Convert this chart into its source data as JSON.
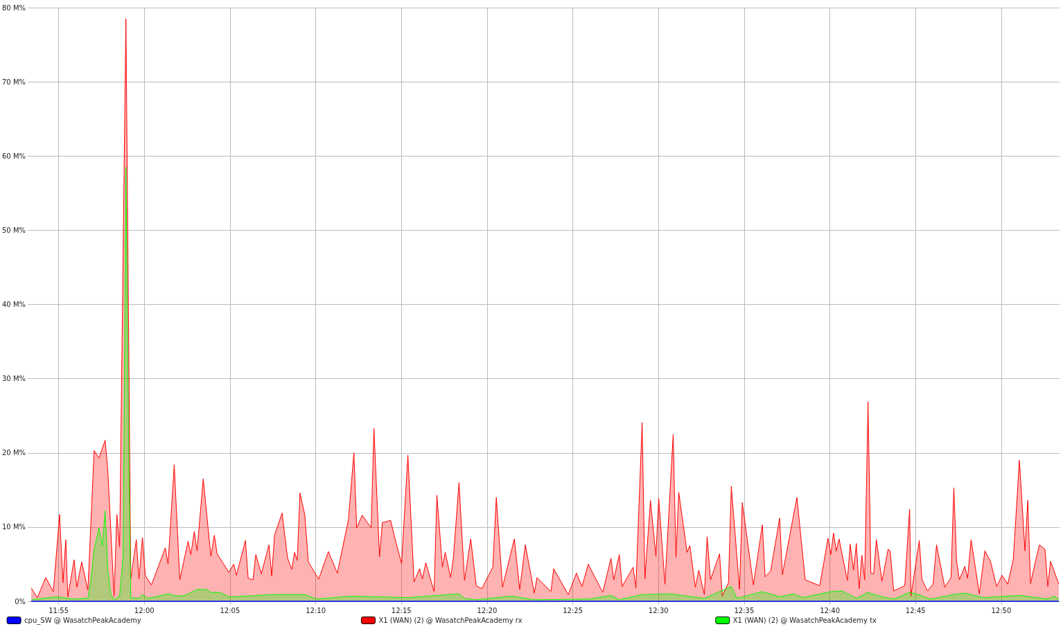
{
  "chart_data": {
    "type": "area",
    "xlim": [
      11.89,
      12.89
    ],
    "ylim": [
      0,
      80
    ],
    "xticks": [
      {
        "value": 11.9167,
        "label": "11:55"
      },
      {
        "value": 12.0,
        "label": "12:00"
      },
      {
        "value": 12.0833,
        "label": "12:05"
      },
      {
        "value": 12.1667,
        "label": "12:10"
      },
      {
        "value": 12.25,
        "label": "12:15"
      },
      {
        "value": 12.3333,
        "label": "12:20"
      },
      {
        "value": 12.4167,
        "label": "12:25"
      },
      {
        "value": 12.5,
        "label": "12:30"
      },
      {
        "value": 12.5833,
        "label": "12:35"
      },
      {
        "value": 12.6667,
        "label": "12:40"
      },
      {
        "value": 12.75,
        "label": "12:45"
      },
      {
        "value": 12.8333,
        "label": "12:50"
      }
    ],
    "yticks": [
      {
        "value": 0,
        "label": "0%"
      },
      {
        "value": 10,
        "label": "10 M%"
      },
      {
        "value": 20,
        "label": "20 M%"
      },
      {
        "value": 30,
        "label": "30 M%"
      },
      {
        "value": 40,
        "label": "40 M%"
      },
      {
        "value": 50,
        "label": "50 M%"
      },
      {
        "value": 60,
        "label": "60 M%"
      },
      {
        "value": 70,
        "label": "70 M%"
      },
      {
        "value": 80,
        "label": "80 M%"
      }
    ],
    "grid": true,
    "legend": "bottom",
    "marker": "none",
    "series": [
      {
        "name": "cpu_SW @ WasatchPeakAcademy",
        "type": "line",
        "color": "#0000ff",
        "x": [
          11.89,
          12.8893
        ],
        "values": [
          0,
          0
        ]
      },
      {
        "name": "X1 (WAN) (2) @ WasatchPeakAcademy rx",
        "color": "#ff0000",
        "x": [
          11.89,
          11.896,
          11.9041,
          11.9115,
          11.9176,
          11.9209,
          11.9236,
          11.9256,
          11.9317,
          11.9344,
          11.9391,
          11.9451,
          11.9512,
          11.9559,
          11.9619,
          11.9646,
          11.9706,
          11.9733,
          11.976,
          11.9821,
          11.9868,
          11.9922,
          11.9948,
          11.9982,
          12.0009,
          12.0069,
          12.0204,
          12.0231,
          12.0291,
          12.0345,
          12.0426,
          12.0452,
          12.0486,
          12.0513,
          12.0573,
          12.0647,
          12.0681,
          12.0708,
          12.0822,
          12.0869,
          12.0896,
          12.0983,
          12.101,
          12.1057,
          12.1084,
          12.1138,
          12.1212,
          12.1239,
          12.1266,
          12.134,
          12.1393,
          12.1434,
          12.1461,
          12.1487,
          12.1514,
          12.1561,
          12.1595,
          12.1696,
          12.179,
          12.1877,
          12.1985,
          12.2038,
          12.2065,
          12.2119,
          12.2206,
          12.2233,
          12.2287,
          12.2314,
          12.2395,
          12.2448,
          12.2502,
          12.2563,
          12.2623,
          12.2677,
          12.2704,
          12.2737,
          12.2818,
          12.2845,
          12.2899,
          12.2926,
          12.2979,
          12.3006,
          12.306,
          12.3114,
          12.3174,
          12.3228,
          12.3282,
          12.3389,
          12.3423,
          12.3483,
          12.3598,
          12.3651,
          12.3705,
          12.3792,
          12.3819,
          12.3954,
          12.3981,
          12.4122,
          12.4202,
          12.4256,
          12.4317,
          12.4458,
          12.4538,
          12.4565,
          12.4619,
          12.4646,
          12.4754,
          12.478,
          12.4841,
          12.4868,
          12.4922,
          12.4975,
          12.5002,
          12.5063,
          12.5143,
          12.517,
          12.5197,
          12.5278,
          12.5305,
          12.5358,
          12.5392,
          12.5446,
          12.5473,
          12.5506,
          12.5594,
          12.562,
          12.5681,
          12.5708,
          12.5788,
          12.5815,
          12.5923,
          12.601,
          12.6037,
          12.6091,
          12.6178,
          12.6205,
          12.6346,
          12.6427,
          12.6568,
          12.6649,
          12.6676,
          12.6702,
          12.6729,
          12.6756,
          12.6837,
          12.6864,
          12.6897,
          12.6924,
          12.6951,
          12.6978,
          12.7005,
          12.7038,
          12.7065,
          12.7092,
          12.7119,
          12.7173,
          12.7233,
          12.7253,
          12.7287,
          12.7395,
          12.7442,
          12.7455,
          12.7536,
          12.7563,
          12.7616,
          12.767,
          12.7704,
          12.7784,
          12.7845,
          12.7872,
          12.7899,
          12.7926,
          12.7979,
          12.8006,
          12.804,
          12.812,
          12.8174,
          12.8228,
          12.8288,
          12.8342,
          12.8396,
          12.845,
          12.851,
          12.8564,
          12.8591,
          12.8618,
          12.8678,
          12.8705,
          12.8759,
          12.8786,
          12.8813,
          12.8893
        ],
        "values": [
          1.8,
          0.5,
          3.2,
          1.3,
          11.7,
          2.5,
          8.3,
          0.6,
          5.6,
          1.9,
          5.3,
          1.5,
          20.3,
          19.3,
          21.7,
          17.4,
          0.7,
          11.7,
          7.3,
          78.5,
          3.0,
          8.3,
          3.0,
          8.6,
          3.5,
          2.2,
          7.2,
          5.0,
          18.4,
          2.9,
          8.1,
          6.3,
          9.4,
          6.8,
          16.5,
          6.1,
          8.9,
          6.4,
          3.9,
          5.0,
          3.5,
          8.2,
          3.1,
          2.9,
          6.3,
          3.7,
          7.6,
          3.4,
          8.9,
          11.9,
          5.8,
          4.3,
          6.6,
          5.5,
          14.6,
          11.6,
          5.3,
          3.0,
          6.7,
          3.8,
          11.0,
          20.0,
          9.9,
          11.6,
          9.9,
          23.3,
          6.0,
          10.6,
          10.9,
          7.9,
          5.1,
          19.7,
          2.6,
          4.4,
          3.0,
          5.2,
          1.3,
          14.3,
          4.6,
          6.6,
          3.2,
          5.9,
          16.0,
          2.8,
          8.4,
          2.1,
          1.7,
          4.6,
          14.0,
          1.9,
          8.4,
          1.6,
          7.6,
          1.1,
          3.2,
          1.3,
          4.4,
          0.9,
          3.8,
          2.0,
          5.0,
          1.2,
          5.8,
          2.9,
          6.3,
          2.0,
          4.6,
          1.8,
          24.1,
          3.0,
          13.6,
          6.1,
          13.9,
          2.3,
          22.5,
          5.9,
          14.7,
          6.6,
          7.5,
          1.9,
          4.2,
          0.9,
          8.7,
          2.9,
          6.4,
          0.7,
          2.5,
          15.5,
          1.6,
          13.3,
          2.2,
          10.3,
          3.3,
          4.1,
          11.2,
          3.6,
          14.0,
          2.9,
          2.1,
          8.5,
          6.3,
          9.2,
          6.8,
          8.4,
          2.8,
          7.7,
          4.2,
          7.8,
          1.7,
          6.2,
          2.9,
          26.9,
          3.8,
          3.7,
          8.3,
          2.7,
          7.0,
          6.8,
          1.4,
          2.1,
          12.4,
          0.7,
          8.2,
          2.9,
          1.4,
          2.3,
          7.6,
          1.9,
          3.2,
          15.3,
          5.4,
          2.9,
          4.7,
          3.1,
          8.3,
          1.0,
          6.8,
          5.4,
          2.0,
          3.5,
          2.3,
          5.6,
          19.0,
          6.8,
          13.6,
          2.4,
          6.1,
          7.6,
          7.0,
          2.0,
          5.4,
          2.3
        ]
      },
      {
        "name": "X1 (WAN) (2) @ WasatchPeakAcademy tx",
        "color": "#00ff00",
        "x": [
          11.89,
          11.9142,
          11.9209,
          11.929,
          11.9451,
          11.9478,
          11.9512,
          11.9559,
          11.9592,
          11.9619,
          11.9646,
          11.9673,
          11.9706,
          11.976,
          11.9794,
          11.9821,
          11.9848,
          11.9868,
          11.9948,
          11.9982,
          12.0036,
          12.0231,
          12.0318,
          12.0399,
          12.0513,
          12.06,
          12.0647,
          12.0735,
          12.0822,
          12.0983,
          12.1239,
          12.1561,
          12.1676,
          12.2012,
          12.2563,
          12.306,
          12.3114,
          12.3228,
          12.3571,
          12.3792,
          12.4323,
          12.4538,
          12.4619,
          12.4841,
          12.5116,
          12.5446,
          12.5708,
          12.5762,
          12.601,
          12.6178,
          12.6313,
          12.64,
          12.6676,
          12.6783,
          12.6924,
          12.7038,
          12.7119,
          12.7287,
          12.7442,
          12.7509,
          12.7643,
          12.7872,
          12.7979,
          12.8161,
          12.851,
          12.8786,
          12.8846,
          12.8893
        ],
        "values": [
          0.2,
          0.6,
          0.5,
          0.3,
          0.4,
          2.5,
          7.0,
          9.9,
          7.5,
          12.2,
          4.0,
          1.0,
          0.2,
          0.7,
          6.0,
          58.5,
          20,
          0.5,
          0.4,
          0.9,
          0.4,
          1.0,
          0.7,
          0.8,
          1.6,
          1.6,
          1.2,
          1.2,
          0.6,
          0.7,
          0.9,
          0.9,
          0.3,
          0.7,
          0.5,
          1.0,
          0.4,
          0.2,
          0.7,
          0.2,
          0.3,
          0.8,
          0.2,
          0.9,
          1.0,
          0.4,
          2.0,
          0.4,
          1.3,
          0.6,
          1.0,
          0.5,
          1.3,
          1.4,
          0.4,
          1.2,
          0.8,
          0.3,
          1.2,
          1.0,
          0.3,
          0.9,
          1.1,
          0.5,
          0.8,
          0.3,
          0.7,
          0.3
        ]
      }
    ]
  }
}
